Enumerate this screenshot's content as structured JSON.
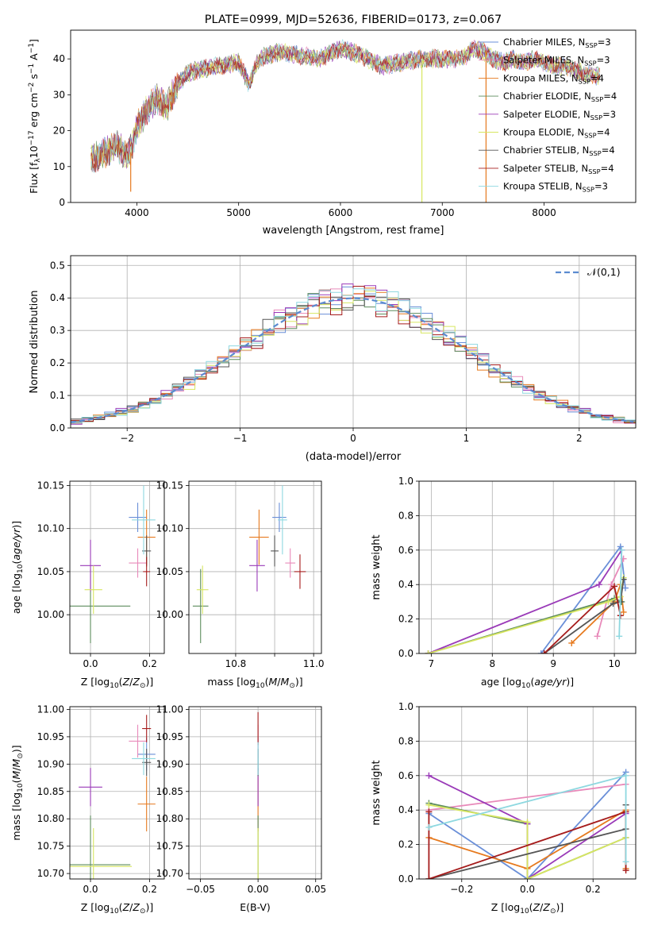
{
  "figure_title": "PLATE=0999, MJD=52636, FIBERID=0173, z=0.067",
  "colors": {
    "Chabrier MILES": "#6a8fd8",
    "Salpeter MILES": "#e88aba",
    "Kroupa MILES": "#e67a1f",
    "Chabrier ELODIE": "#5d8c5d",
    "Salpeter ELODIE": "#9a3ab8",
    "Kroupa ELODIE": "#d7e660",
    "Chabrier STELIB": "#555555",
    "Salpeter STELIB": "#a61c1c",
    "Kroupa STELIB": "#8ed8e0",
    "normal": "#5b8bd0",
    "grid": "#b0b0b0"
  },
  "chart_data": [
    {
      "id": "spectrum",
      "type": "line",
      "title": "PLATE=0999, MJD=52636, FIBERID=0173, z=0.067",
      "xlabel": "wavelength [Angstrom, rest frame]",
      "ylabel_parts": [
        "Flux [f",
        "λ",
        "10",
        "−17",
        " erg cm",
        "−2",
        " s",
        "−1",
        " A",
        "−1",
        "]"
      ],
      "xlim": [
        3350,
        8900
      ],
      "ylim": [
        0,
        48
      ],
      "xticks": [
        4000,
        5000,
        6000,
        7000,
        8000
      ],
      "yticks": [
        0,
        10,
        20,
        30,
        40
      ],
      "grid": false,
      "legend_position": "top-right",
      "legend": [
        {
          "name": "Chabrier MILES",
          "nssp": "3"
        },
        {
          "name": "Salpeter MILES",
          "nssp": "3"
        },
        {
          "name": "Kroupa MILES",
          "nssp": "4"
        },
        {
          "name": "Chabrier ELODIE",
          "nssp": "4"
        },
        {
          "name": "Salpeter ELODIE",
          "nssp": "3"
        },
        {
          "name": "Kroupa ELODIE",
          "nssp": "4"
        },
        {
          "name": "Chabrier STELIB",
          "nssp": "4"
        },
        {
          "name": "Salpeter STELIB",
          "nssp": "4"
        },
        {
          "name": "Kroupa STELIB",
          "nssp": "3"
        }
      ],
      "nssp_label": "SSP",
      "envelope": {
        "x": [
          3550,
          3700,
          3800,
          3900,
          3950,
          4000,
          4100,
          4200,
          4300,
          4400,
          4500,
          4600,
          4800,
          5000,
          5100,
          5200,
          5300,
          5400,
          5600,
          5800,
          6000,
          6200,
          6400,
          6600,
          6800,
          7000,
          7200,
          7300,
          7400,
          7500,
          7600,
          7700,
          7800,
          7900,
          8000,
          8100,
          8200,
          8300,
          8400,
          8550
        ],
        "y": [
          12,
          14,
          16,
          13,
          15,
          21,
          26,
          29,
          27,
          33,
          36,
          37,
          38,
          39,
          33,
          40,
          41,
          42,
          41,
          40,
          43,
          41,
          38,
          39,
          40,
          40,
          40,
          43,
          42,
          40,
          39,
          40,
          39,
          40,
          39,
          38,
          38,
          37,
          36,
          35
        ]
      },
      "spikes": [
        {
          "x": 6800,
          "y_from": 0,
          "y_to": 40
        },
        {
          "x": 7430,
          "y_from": 0,
          "y_to": 42
        },
        {
          "x": 3940,
          "y_from": 3,
          "y_to": 14
        }
      ]
    },
    {
      "id": "residuals",
      "type": "bar",
      "xlabel": "(data-model)/error",
      "ylabel": "Normed distribution",
      "xlim": [
        -2.5,
        2.5
      ],
      "ylim": [
        0,
        0.53
      ],
      "xticks": [
        -2,
        -1,
        0,
        1,
        2
      ],
      "yticks": [
        0.0,
        0.1,
        0.2,
        0.3,
        0.4,
        0.5
      ],
      "grid": true,
      "legend_position": "top-right",
      "legend": [
        {
          "name": "𝒩(0,1)"
        }
      ],
      "bin_width": 0.1
    },
    {
      "id": "age-vs-Z",
      "type": "scatter",
      "xlabel": "Z [log10(Z/Z⊙)]",
      "ylabel": "age [log10(age/yr)]",
      "xlim": [
        -0.07,
        0.25
      ],
      "ylim": [
        9.955,
        10.155
      ],
      "xticks": [
        0.0,
        0.2
      ],
      "yticks": [
        10.0,
        10.05,
        10.1,
        10.15
      ],
      "grid": true,
      "points": [
        {
          "model": "Chabrier MILES",
          "x": 0.16,
          "y": 10.113,
          "xerr": 0.03,
          "yerr": 0.017
        },
        {
          "model": "Salpeter MILES",
          "x": 0.16,
          "y": 10.06,
          "xerr": 0.03,
          "yerr": 0.017
        },
        {
          "model": "Kroupa MILES",
          "x": 0.19,
          "y": 10.09,
          "xerr": 0.03,
          "yerr": 0.032
        },
        {
          "model": "Chabrier ELODIE",
          "x": 0.0,
          "y": 10.01,
          "xerr": 0.135,
          "yerr": 0.043
        },
        {
          "model": "Salpeter ELODIE",
          "x": 0.0,
          "y": 10.057,
          "xerr": 0.035,
          "yerr": 0.03
        },
        {
          "model": "Kroupa ELODIE",
          "x": 0.01,
          "y": 10.029,
          "xerr": 0.03,
          "yerr": 0.028
        },
        {
          "model": "Chabrier STELIB",
          "x": 0.19,
          "y": 10.074,
          "xerr": 0.015,
          "yerr": 0.018
        },
        {
          "model": "Salpeter STELIB",
          "x": 0.19,
          "y": 10.05,
          "xerr": 0.012,
          "yerr": 0.017
        },
        {
          "model": "Kroupa STELIB",
          "x": 0.18,
          "y": 10.11,
          "xerr": 0.04,
          "yerr": 0.04
        }
      ]
    },
    {
      "id": "age-vs-mass",
      "type": "scatter",
      "xlabel": "mass [log10(M/M⊙)]",
      "xlim": [
        10.68,
        11.02
      ],
      "ylim": [
        9.955,
        10.155
      ],
      "xticks": [
        10.8,
        10.9,
        11.0
      ],
      "xtick_labels": [
        "10.8",
        "11.0"
      ],
      "yticks": [
        10.0,
        10.05,
        10.1,
        10.15
      ],
      "grid": true,
      "points": [
        {
          "model": "Chabrier MILES",
          "x": 10.912,
          "y": 10.113,
          "xerr": 0.018,
          "yerr": 0.017
        },
        {
          "model": "Salpeter MILES",
          "x": 10.94,
          "y": 10.06,
          "xerr": 0.013,
          "yerr": 0.017
        },
        {
          "model": "Kroupa MILES",
          "x": 10.86,
          "y": 10.09,
          "xerr": 0.025,
          "yerr": 0.032
        },
        {
          "model": "Chabrier ELODIE",
          "x": 10.71,
          "y": 10.01,
          "xerr": 0.02,
          "yerr": 0.043
        },
        {
          "model": "Salpeter ELODIE",
          "x": 10.855,
          "y": 10.057,
          "xerr": 0.02,
          "yerr": 0.03
        },
        {
          "model": "Kroupa ELODIE",
          "x": 10.715,
          "y": 10.029,
          "xerr": 0.015,
          "yerr": 0.028
        },
        {
          "model": "Chabrier STELIB",
          "x": 10.9,
          "y": 10.074,
          "xerr": 0.01,
          "yerr": 0.018
        },
        {
          "model": "Salpeter STELIB",
          "x": 10.965,
          "y": 10.05,
          "xerr": 0.015,
          "yerr": 0.02
        },
        {
          "model": "Kroupa STELIB",
          "x": 10.92,
          "y": 10.11,
          "xerr": 0.012,
          "yerr": 0.04
        }
      ]
    },
    {
      "id": "weight-vs-age",
      "type": "line",
      "xlabel": "age [log10(age/yr)]",
      "ylabel": "mass weight",
      "xlim": [
        6.8,
        10.35
      ],
      "ylim": [
        0,
        1.0
      ],
      "xticks": [
        7,
        8,
        9,
        10
      ],
      "yticks": [
        0.0,
        0.2,
        0.4,
        0.6,
        0.8,
        1.0
      ],
      "grid": true,
      "series": [
        {
          "name": "Chabrier MILES",
          "x": [
            8.8,
            10.1,
            10.18
          ],
          "y": [
            0.0,
            0.62,
            0.38
          ]
        },
        {
          "name": "Salpeter MILES",
          "x": [
            9.72,
            9.95,
            10.15
          ],
          "y": [
            0.1,
            0.4,
            0.55
          ]
        },
        {
          "name": "Kroupa MILES",
          "x": [
            9.3,
            10.0,
            10.1,
            10.15
          ],
          "y": [
            0.06,
            0.3,
            0.4,
            0.24
          ]
        },
        {
          "name": "Chabrier ELODIE",
          "x": [
            6.95,
            10.0,
            10.12
          ],
          "y": [
            0.0,
            0.32,
            0.3
          ]
        },
        {
          "name": "Salpeter ELODIE",
          "x": [
            6.95,
            9.75,
            10.12
          ],
          "y": [
            0.0,
            0.4,
            0.6
          ]
        },
        {
          "name": "Kroupa ELODIE",
          "x": [
            6.95,
            9.9,
            10.1,
            10.15
          ],
          "y": [
            0.0,
            0.3,
            0.33,
            0.44
          ]
        },
        {
          "name": "Chabrier STELIB",
          "x": [
            8.85,
            9.98,
            10.1,
            10.15
          ],
          "y": [
            0.0,
            0.29,
            0.3,
            0.43
          ]
        },
        {
          "name": "Salpeter STELIB",
          "x": [
            8.85,
            10.0,
            10.1
          ],
          "y": [
            0.0,
            0.39,
            0.22
          ]
        },
        {
          "name": "Kroupa STELIB",
          "x": [
            10.08,
            10.12
          ],
          "y": [
            0.1,
            0.6
          ]
        }
      ]
    },
    {
      "id": "mass-vs-Z",
      "type": "scatter",
      "xlabel": "Z [log10(Z/Z⊙)]",
      "ylabel": "mass [log10(M/M⊙)]",
      "xlim": [
        -0.07,
        0.25
      ],
      "ylim": [
        10.69,
        11.005
      ],
      "xticks": [
        0.0,
        0.2
      ],
      "yticks": [
        10.7,
        10.75,
        10.8,
        10.85,
        10.9,
        10.95,
        11.0
      ],
      "grid": true,
      "points": [
        {
          "model": "Chabrier MILES",
          "x": 0.19,
          "y": 10.918,
          "xerr": 0.03,
          "yerr": 0.03
        },
        {
          "model": "Salpeter MILES",
          "x": 0.16,
          "y": 10.942,
          "xerr": 0.03,
          "yerr": 0.03
        },
        {
          "model": "Kroupa MILES",
          "x": 0.19,
          "y": 10.827,
          "xerr": 0.03,
          "yerr": 0.05
        },
        {
          "model": "Chabrier ELODIE",
          "x": 0.0,
          "y": 10.716,
          "xerr": 0.135,
          "yerr": 0.09
        },
        {
          "model": "Salpeter ELODIE",
          "x": 0.0,
          "y": 10.858,
          "xerr": 0.04,
          "yerr": 0.035
        },
        {
          "model": "Kroupa ELODIE",
          "x": 0.01,
          "y": 10.713,
          "xerr": 0.13,
          "yerr": 0.07
        },
        {
          "model": "Chabrier STELIB",
          "x": 0.19,
          "y": 10.903,
          "xerr": 0.015,
          "yerr": 0.025
        },
        {
          "model": "Salpeter STELIB",
          "x": 0.19,
          "y": 10.965,
          "xerr": 0.015,
          "yerr": 0.025
        },
        {
          "model": "Kroupa STELIB",
          "x": 0.18,
          "y": 10.91,
          "xerr": 0.04,
          "yerr": 0.03
        }
      ]
    },
    {
      "id": "mass-vs-EBV",
      "type": "scatter",
      "xlabel": "E(B-V)",
      "xlim": [
        -0.06,
        0.055
      ],
      "ylim": [
        10.69,
        11.005
      ],
      "xticks": [
        -0.05,
        0.0,
        0.05
      ],
      "xtick_labels": [
        "−0.05",
        "0.00",
        "0.05"
      ],
      "yticks": [
        10.7,
        10.75,
        10.8,
        10.85,
        10.9,
        10.95,
        11.0
      ],
      "grid": true,
      "points": [
        {
          "model": "Chabrier MILES",
          "x": 0.0,
          "y": 10.918,
          "xerr": 0.0,
          "yerr": 0.03
        },
        {
          "model": "Salpeter MILES",
          "x": 0.0,
          "y": 10.942,
          "xerr": 0.0,
          "yerr": 0.03
        },
        {
          "model": "Kroupa MILES",
          "x": 0.0,
          "y": 10.827,
          "xerr": 0.0,
          "yerr": 0.05
        },
        {
          "model": "Chabrier ELODIE",
          "x": 0.0,
          "y": 10.716,
          "xerr": 0.0,
          "yerr": 0.09
        },
        {
          "model": "Salpeter ELODIE",
          "x": 0.0,
          "y": 10.858,
          "xerr": 0.0,
          "yerr": 0.035
        },
        {
          "model": "Kroupa ELODIE",
          "x": 0.0,
          "y": 10.713,
          "xerr": 0.0,
          "yerr": 0.07
        },
        {
          "model": "Chabrier STELIB",
          "x": 0.0,
          "y": 10.903,
          "xerr": 0.0,
          "yerr": 0.025
        },
        {
          "model": "Salpeter STELIB",
          "x": 0.0,
          "y": 10.965,
          "xerr": 0.0,
          "yerr": 0.03
        },
        {
          "model": "Kroupa STELIB",
          "x": 0.0,
          "y": 10.91,
          "xerr": 0.0,
          "yerr": 0.03
        }
      ]
    },
    {
      "id": "weight-vs-Z",
      "type": "line",
      "xlabel": "Z [log10(Z/Z⊙)]",
      "ylabel": "mass weight",
      "xlim": [
        -0.33,
        0.33
      ],
      "ylim": [
        0,
        1.0
      ],
      "xticks": [
        -0.2,
        0.0,
        0.2
      ],
      "yticks": [
        0.0,
        0.2,
        0.4,
        0.6,
        0.8,
        1.0
      ],
      "grid": true,
      "series": [
        {
          "name": "Chabrier MILES",
          "x": [
            -0.3,
            0.0,
            0.3
          ],
          "y": [
            0.38,
            0.0,
            0.62
          ]
        },
        {
          "name": "Salpeter MILES",
          "x": [
            -0.3,
            0.3
          ],
          "y": [
            0.4,
            0.55
          ]
        },
        {
          "name": "Kroupa MILES",
          "x": [
            -0.3,
            0.0,
            0.3,
            0.3
          ],
          "y": [
            0.24,
            0.06,
            0.4,
            0.06
          ]
        },
        {
          "name": "Chabrier ELODIE",
          "x": [
            -0.3,
            0.0,
            0.0,
            0.3
          ],
          "y": [
            0.44,
            0.32,
            0.0,
            0.24
          ]
        },
        {
          "name": "Salpeter ELODIE",
          "x": [
            -0.3,
            0.0,
            0.0,
            0.3
          ],
          "y": [
            0.6,
            0.32,
            0.0,
            0.38
          ]
        },
        {
          "name": "Kroupa ELODIE",
          "x": [
            -0.3,
            0.0,
            0.0,
            0.3
          ],
          "y": [
            0.43,
            0.33,
            0.0,
            0.24
          ]
        },
        {
          "name": "Chabrier STELIB",
          "x": [
            -0.3,
            0.3,
            0.3
          ],
          "y": [
            0.0,
            0.29,
            0.43
          ]
        },
        {
          "name": "Salpeter STELIB",
          "x": [
            -0.3,
            -0.3,
            0.3,
            0.3
          ],
          "y": [
            0.39,
            0.0,
            0.39,
            0.05
          ]
        },
        {
          "name": "Kroupa STELIB",
          "x": [
            -0.3,
            0.3,
            0.3
          ],
          "y": [
            0.3,
            0.6,
            0.1
          ]
        }
      ]
    }
  ]
}
